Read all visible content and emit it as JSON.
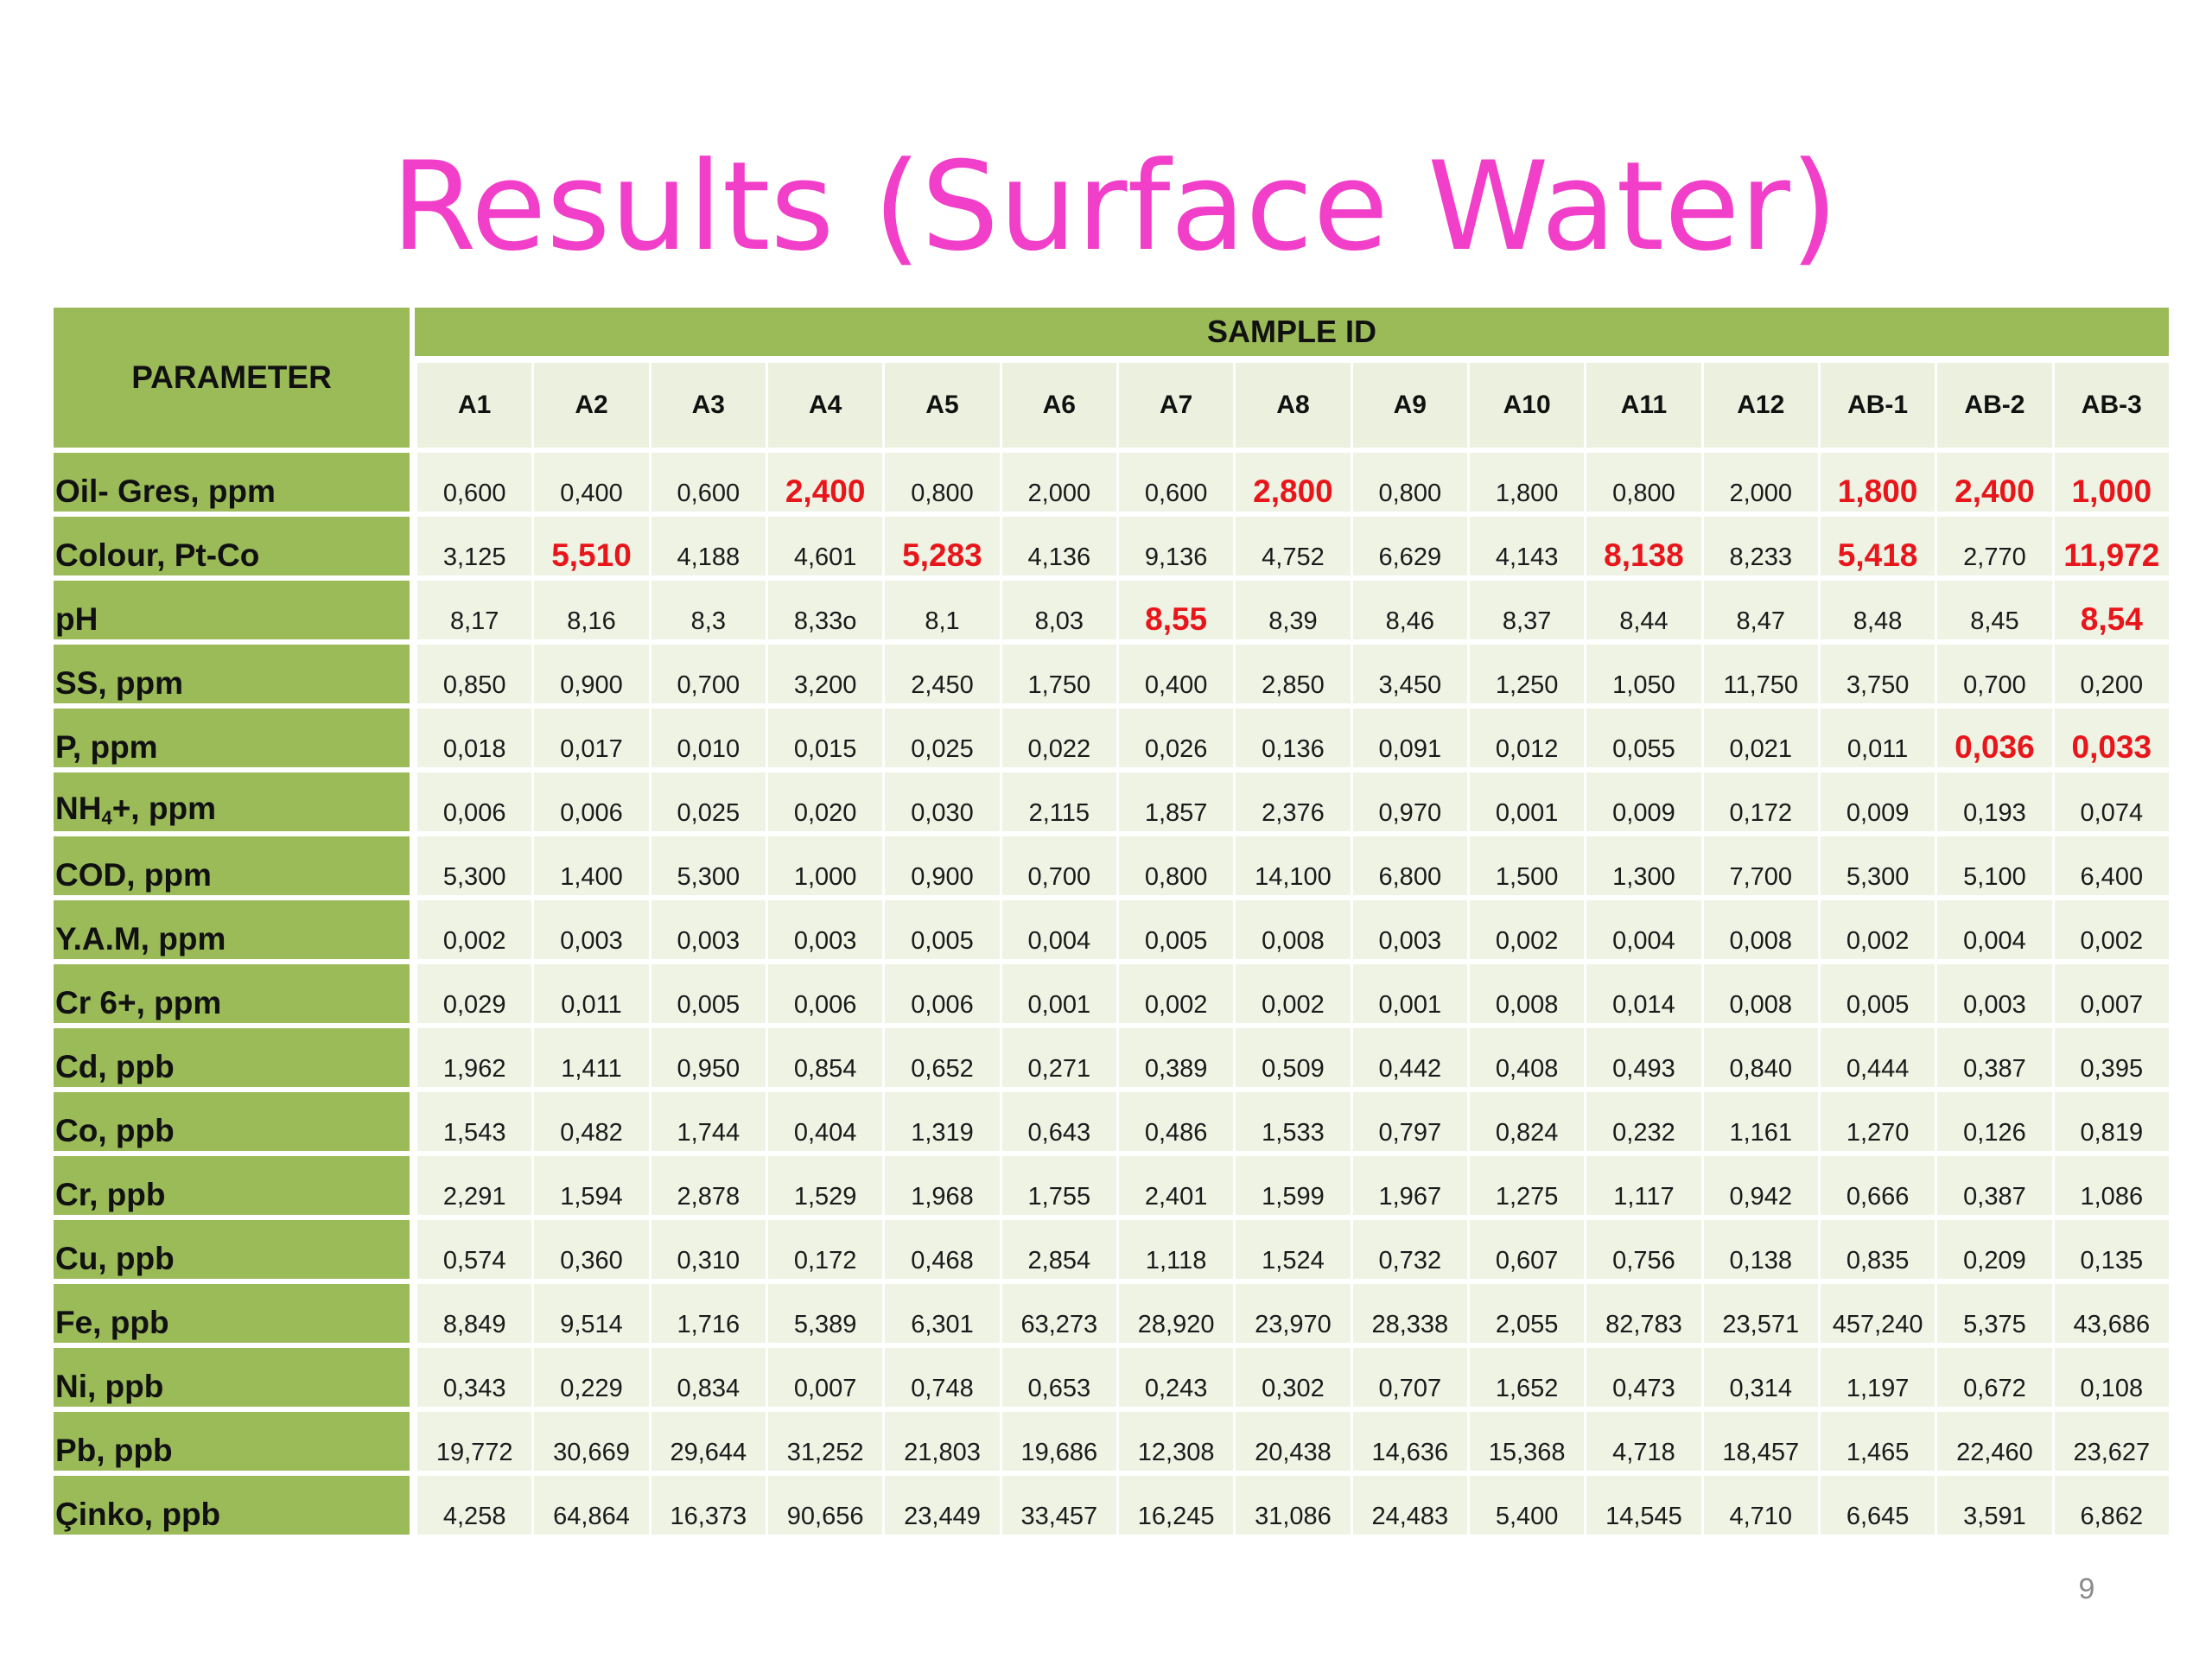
{
  "title": "Results (Surface Water)",
  "page_number": "9",
  "colors": {
    "title": "#f23fc9",
    "header_green": "#9bbb59",
    "cell_bg": "#eef3e4",
    "highlight_red": "#e8161b"
  },
  "table": {
    "parameter_header": "PARAMETER",
    "sample_id_header": "SAMPLE ID",
    "columns": [
      "A1",
      "A2",
      "A3",
      "A4",
      "A5",
      "A6",
      "A7",
      "A8",
      "A9",
      "A10",
      "A11",
      "A12",
      "AB-1",
      "AB-2",
      "AB-3"
    ],
    "rows": [
      {
        "parameter": "Oil- Gres, ppm",
        "values": [
          "0,600",
          "0,400",
          "0,600",
          "2,400",
          "0,800",
          "2,000",
          "0,600",
          "2,800",
          "0,800",
          "1,800",
          "0,800",
          "2,000",
          "1,800",
          "2,400",
          "1,000"
        ],
        "highlight": [
          false,
          false,
          false,
          true,
          false,
          false,
          false,
          true,
          false,
          false,
          false,
          false,
          true,
          true,
          true
        ]
      },
      {
        "parameter": "Colour, Pt-Co",
        "values": [
          "3,125",
          "5,510",
          "4,188",
          "4,601",
          "5,283",
          "4,136",
          "9,136",
          "4,752",
          "6,629",
          "4,143",
          "8,138",
          "8,233",
          "5,418",
          "2,770",
          "11,972"
        ],
        "highlight": [
          false,
          true,
          false,
          false,
          true,
          false,
          false,
          false,
          false,
          false,
          true,
          false,
          true,
          false,
          true
        ]
      },
      {
        "parameter": "pH",
        "values": [
          "8,17",
          "8,16",
          "8,3",
          "8,33o",
          "8,1",
          "8,03",
          "8,55",
          "8,39",
          "8,46",
          "8,37",
          "8,44",
          "8,47",
          "8,48",
          "8,45",
          "8,54"
        ],
        "highlight": [
          false,
          false,
          false,
          false,
          false,
          false,
          true,
          false,
          false,
          false,
          false,
          false,
          false,
          false,
          true
        ]
      },
      {
        "parameter": "SS, ppm",
        "values": [
          "0,850",
          "0,900",
          "0,700",
          "3,200",
          "2,450",
          "1,750",
          "0,400",
          "2,850",
          "3,450",
          "1,250",
          "1,050",
          "11,750",
          "3,750",
          "0,700",
          "0,200"
        ],
        "highlight": [
          false,
          false,
          false,
          false,
          false,
          false,
          false,
          false,
          false,
          false,
          false,
          false,
          false,
          false,
          false
        ]
      },
      {
        "parameter": "P, ppm",
        "values": [
          "0,018",
          "0,017",
          "0,010",
          "0,015",
          "0,025",
          "0,022",
          "0,026",
          "0,136",
          "0,091",
          "0,012",
          "0,055",
          "0,021",
          "0,011",
          "0,036",
          "0,033"
        ],
        "highlight": [
          false,
          false,
          false,
          false,
          false,
          false,
          false,
          false,
          false,
          false,
          false,
          false,
          false,
          true,
          true
        ]
      },
      {
        "parameter": "NH4+, ppm",
        "parameter_parts": {
          "base": "NH",
          "subscript": "4",
          "rest": "+, ppm"
        },
        "values": [
          "0,006",
          "0,006",
          "0,025",
          "0,020",
          "0,030",
          "2,115",
          "1,857",
          "2,376",
          "0,970",
          "0,001",
          "0,009",
          "0,172",
          "0,009",
          "0,193",
          "0,074"
        ],
        "highlight": [
          false,
          false,
          false,
          false,
          false,
          false,
          false,
          false,
          false,
          false,
          false,
          false,
          false,
          false,
          false
        ]
      },
      {
        "parameter": "COD, ppm",
        "values": [
          "5,300",
          "1,400",
          "5,300",
          "1,000",
          "0,900",
          "0,700",
          "0,800",
          "14,100",
          "6,800",
          "1,500",
          "1,300",
          "7,700",
          "5,300",
          "5,100",
          "6,400"
        ],
        "highlight": [
          false,
          false,
          false,
          false,
          false,
          false,
          false,
          false,
          false,
          false,
          false,
          false,
          false,
          false,
          false
        ]
      },
      {
        "parameter": "Y.A.M, ppm",
        "values": [
          "0,002",
          "0,003",
          "0,003",
          "0,003",
          "0,005",
          "0,004",
          "0,005",
          "0,008",
          "0,003",
          "0,002",
          "0,004",
          "0,008",
          "0,002",
          "0,004",
          "0,002"
        ],
        "highlight": [
          false,
          false,
          false,
          false,
          false,
          false,
          false,
          false,
          false,
          false,
          false,
          false,
          false,
          false,
          false
        ]
      },
      {
        "parameter": "Cr 6+, ppm",
        "values": [
          "0,029",
          "0,011",
          "0,005",
          "0,006",
          "0,006",
          "0,001",
          "0,002",
          "0,002",
          "0,001",
          "0,008",
          "0,014",
          "0,008",
          "0,005",
          "0,003",
          "0,007"
        ],
        "highlight": [
          false,
          false,
          false,
          false,
          false,
          false,
          false,
          false,
          false,
          false,
          false,
          false,
          false,
          false,
          false
        ]
      },
      {
        "parameter": "Cd, ppb",
        "values": [
          "1,962",
          "1,411",
          "0,950",
          "0,854",
          "0,652",
          "0,271",
          "0,389",
          "0,509",
          "0,442",
          "0,408",
          "0,493",
          "0,840",
          "0,444",
          "0,387",
          "0,395"
        ],
        "highlight": [
          false,
          false,
          false,
          false,
          false,
          false,
          false,
          false,
          false,
          false,
          false,
          false,
          false,
          false,
          false
        ]
      },
      {
        "parameter": "Co, ppb",
        "values": [
          "1,543",
          "0,482",
          "1,744",
          "0,404",
          "1,319",
          "0,643",
          "0,486",
          "1,533",
          "0,797",
          "0,824",
          "0,232",
          "1,161",
          "1,270",
          "0,126",
          "0,819"
        ],
        "highlight": [
          false,
          false,
          false,
          false,
          false,
          false,
          false,
          false,
          false,
          false,
          false,
          false,
          false,
          false,
          false
        ]
      },
      {
        "parameter": "Cr, ppb",
        "values": [
          "2,291",
          "1,594",
          "2,878",
          "1,529",
          "1,968",
          "1,755",
          "2,401",
          "1,599",
          "1,967",
          "1,275",
          "1,117",
          "0,942",
          "0,666",
          "0,387",
          "1,086"
        ],
        "highlight": [
          false,
          false,
          false,
          false,
          false,
          false,
          false,
          false,
          false,
          false,
          false,
          false,
          false,
          false,
          false
        ]
      },
      {
        "parameter": "Cu, ppb",
        "values": [
          "0,574",
          "0,360",
          "0,310",
          "0,172",
          "0,468",
          "2,854",
          "1,118",
          "1,524",
          "0,732",
          "0,607",
          "0,756",
          "0,138",
          "0,835",
          "0,209",
          "0,135"
        ],
        "highlight": [
          false,
          false,
          false,
          false,
          false,
          false,
          false,
          false,
          false,
          false,
          false,
          false,
          false,
          false,
          false
        ]
      },
      {
        "parameter": "Fe, ppb",
        "values": [
          "8,849",
          "9,514",
          "1,716",
          "5,389",
          "6,301",
          "63,273",
          "28,920",
          "23,970",
          "28,338",
          "2,055",
          "82,783",
          "23,571",
          "457,240",
          "5,375",
          "43,686"
        ],
        "highlight": [
          false,
          false,
          false,
          false,
          false,
          false,
          false,
          false,
          false,
          false,
          false,
          false,
          false,
          false,
          false
        ]
      },
      {
        "parameter": "Ni, ppb",
        "values": [
          "0,343",
          "0,229",
          "0,834",
          "0,007",
          "0,748",
          "0,653",
          "0,243",
          "0,302",
          "0,707",
          "1,652",
          "0,473",
          "0,314",
          "1,197",
          "0,672",
          "0,108"
        ],
        "highlight": [
          false,
          false,
          false,
          false,
          false,
          false,
          false,
          false,
          false,
          false,
          false,
          false,
          false,
          false,
          false
        ]
      },
      {
        "parameter": "Pb, ppb",
        "values": [
          "19,772",
          "30,669",
          "29,644",
          "31,252",
          "21,803",
          "19,686",
          "12,308",
          "20,438",
          "14,636",
          "15,368",
          "4,718",
          "18,457",
          "1,465",
          "22,460",
          "23,627"
        ],
        "highlight": [
          false,
          false,
          false,
          false,
          false,
          false,
          false,
          false,
          false,
          false,
          false,
          false,
          false,
          false,
          false
        ]
      },
      {
        "parameter": "Çinko, ppb",
        "values": [
          "4,258",
          "64,864",
          "16,373",
          "90,656",
          "23,449",
          "33,457",
          "16,245",
          "31,086",
          "24,483",
          "5,400",
          "14,545",
          "4,710",
          "6,645",
          "3,591",
          "6,862"
        ],
        "highlight": [
          false,
          false,
          false,
          false,
          false,
          false,
          false,
          false,
          false,
          false,
          false,
          false,
          false,
          false,
          false
        ]
      }
    ]
  }
}
